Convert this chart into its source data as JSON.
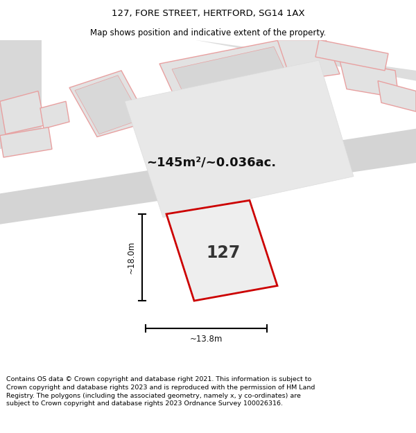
{
  "title": "127, FORE STREET, HERTFORD, SG14 1AX",
  "subtitle": "Map shows position and indicative extent of the property.",
  "area_label": "~145m²/~0.036ac.",
  "number_label": "127",
  "dim_width": "~13.8m",
  "dim_height": "~18.0m",
  "footer": "Contains OS data © Crown copyright and database right 2021. This information is subject to Crown copyright and database rights 2023 and is reproduced with the permission of HM Land Registry. The polygons (including the associated geometry, namely x, y co-ordinates) are subject to Crown copyright and database rights 2023 Ordnance Survey 100026316.",
  "bg_color": "#ffffff",
  "light_pink": "#f5c0c0",
  "plot_edge": "#cc0000",
  "plot_fill": "#eeeeee",
  "building_fill": "#e2e2e2",
  "building_edge": "#e8a0a0",
  "road_fill": "#d4d4d4",
  "title_fontsize": 9.5,
  "subtitle_fontsize": 8.5
}
